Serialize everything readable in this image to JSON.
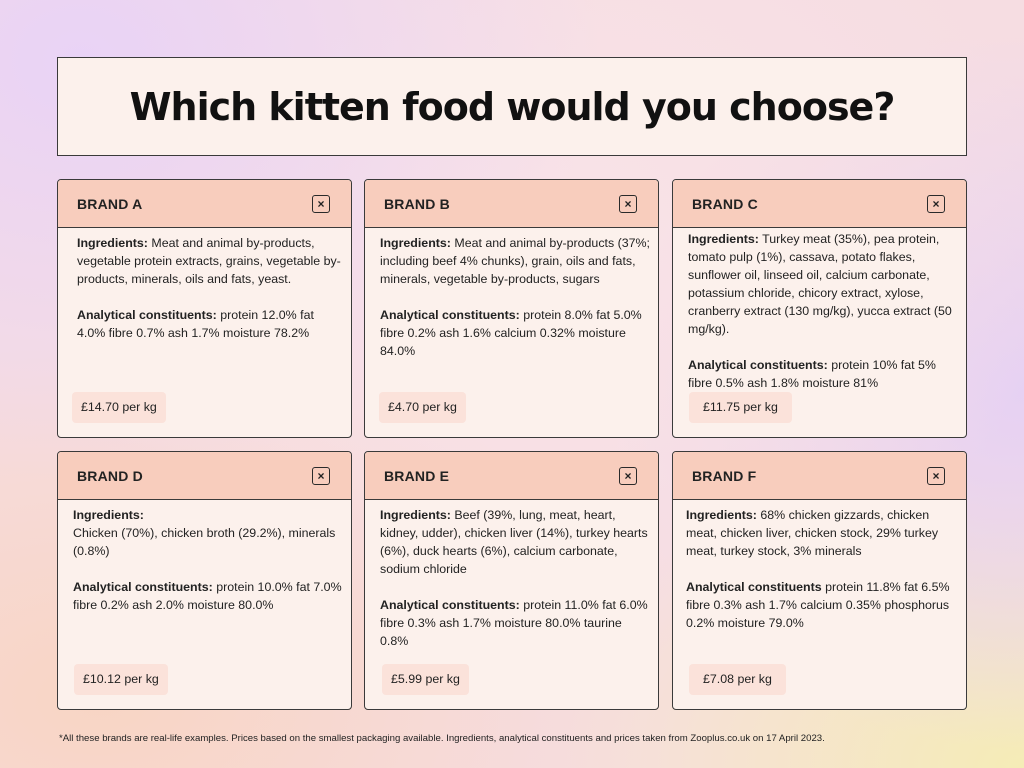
{
  "title": "Which kitten food would you choose?",
  "close_icon": "×",
  "labels": {
    "ingredients": "Ingredients:",
    "analytical": "Analytical constituents:",
    "analytical_f": "Analytical constituents"
  },
  "brands": [
    {
      "name": "BRAND A",
      "ingredients": "Meat and animal by-products, vegetable protein extracts, grains, vegetable by-products, minerals, oils and fats, yeast.",
      "analytical": "protein 12.0% fat 4.0% fibre 0.7% ash 1.7% moisture 78.2%",
      "price": "£14.70 per kg"
    },
    {
      "name": "BRAND B",
      "ingredients": "Meat and animal by-products (37%; including beef 4% chunks), grain, oils and fats, minerals, vegetable by-products, sugars",
      "analytical": "protein 8.0% fat 5.0% fibre 0.2% ash 1.6% calcium 0.32% moisture 84.0%",
      "price": "£4.70 per kg"
    },
    {
      "name": "BRAND C",
      "ingredients": "Turkey meat (35%), pea protein, tomato pulp (1%), cassava, potato flakes, sunflower oil, linseed oil, calcium carbonate, potassium chloride, chicory extract, xylose, cranberry extract (130 mg/kg), yucca extract (50 mg/kg).",
      "analytical": "protein 10% fat 5%  fibre 0.5% ash 1.8% moisture 81%",
      "price": "£11.75 per kg"
    },
    {
      "name": "BRAND D",
      "ingredients": "Chicken (70%), chicken broth (29.2%), minerals (0.8%)",
      "analytical": "protein 10.0% fat 7.0% fibre 0.2% ash 2.0% moisture 80.0%",
      "price": "£10.12 per kg"
    },
    {
      "name": "BRAND E",
      "ingredients": "Beef (39%, lung, meat, heart, kidney, udder), chicken liver (14%), turkey hearts (6%), duck hearts (6%), calcium carbonate, sodium chloride",
      "analytical": "protein 11.0% fat 6.0% fibre 0.3% ash 1.7% moisture 80.0% taurine 0.8%",
      "price": "£5.99 per kg"
    },
    {
      "name": "BRAND F",
      "ingredients": "68% chicken gizzards, chicken meat, chicken liver, chicken stock, 29% turkey meat, turkey stock, 3% minerals",
      "analytical": "protein 11.8% fat 6.5% fibre 0.3% ash 1.7% calcium 0.35% phosphorus 0.2% moisture 79.0%",
      "price": "£7.08 per kg"
    }
  ],
  "footnote": "*All these brands are real-life examples. Prices based on the smallest packaging available. Ingredients, analytical constituents and prices taken from Zooplus.co.uk on 17 April 2023."
}
